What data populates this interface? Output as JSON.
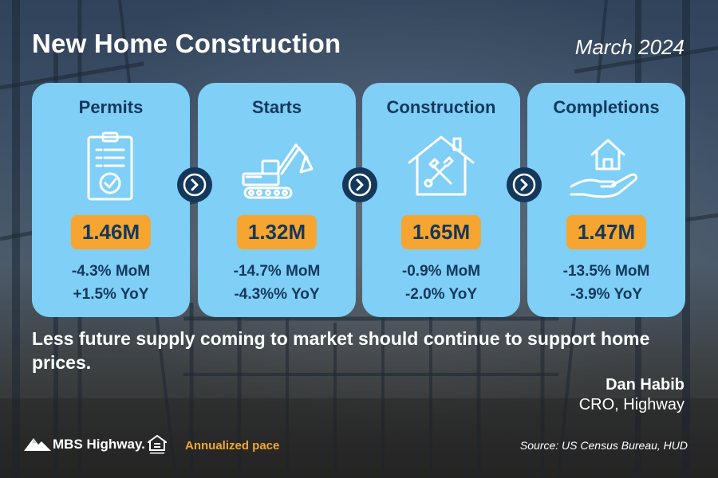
{
  "header": {
    "title": "New Home Construction",
    "date": "March 2024"
  },
  "cards": [
    {
      "title": "Permits",
      "icon": "clipboard-check-icon",
      "value": "1.46M",
      "mom": "-4.3% MoM",
      "yoy": "+1.5% YoY"
    },
    {
      "title": "Starts",
      "icon": "excavator-icon",
      "value": "1.32M",
      "mom": "-14.7% MoM",
      "yoy": "-4.3%% YoY"
    },
    {
      "title": "Construction",
      "icon": "house-tools-icon",
      "value": "1.65M",
      "mom": "-0.9% MoM",
      "yoy": "-2.0% YoY"
    },
    {
      "title": "Completions",
      "icon": "hand-house-icon",
      "value": "1.47M",
      "mom": "-13.5% MoM",
      "yoy": "-3.9% YoY"
    }
  ],
  "arrows": [
    "chevron-right-icon",
    "chevron-right-icon",
    "chevron-right-icon"
  ],
  "message": "Less future supply coming to market should continue to support home prices.",
  "author": {
    "name": "Dan Habib",
    "title": "CRO, Highway"
  },
  "footer": {
    "logo_text": "MBS Highway.",
    "equal_housing_icon": "equal-housing-icon",
    "note": "Annualized pace",
    "source": "Source: US Census Bureau, HUD"
  },
  "colors": {
    "card_bg": "#7fcff6",
    "navy": "#14385c",
    "accent_orange": "#f5a530",
    "text_white": "#ffffff"
  }
}
